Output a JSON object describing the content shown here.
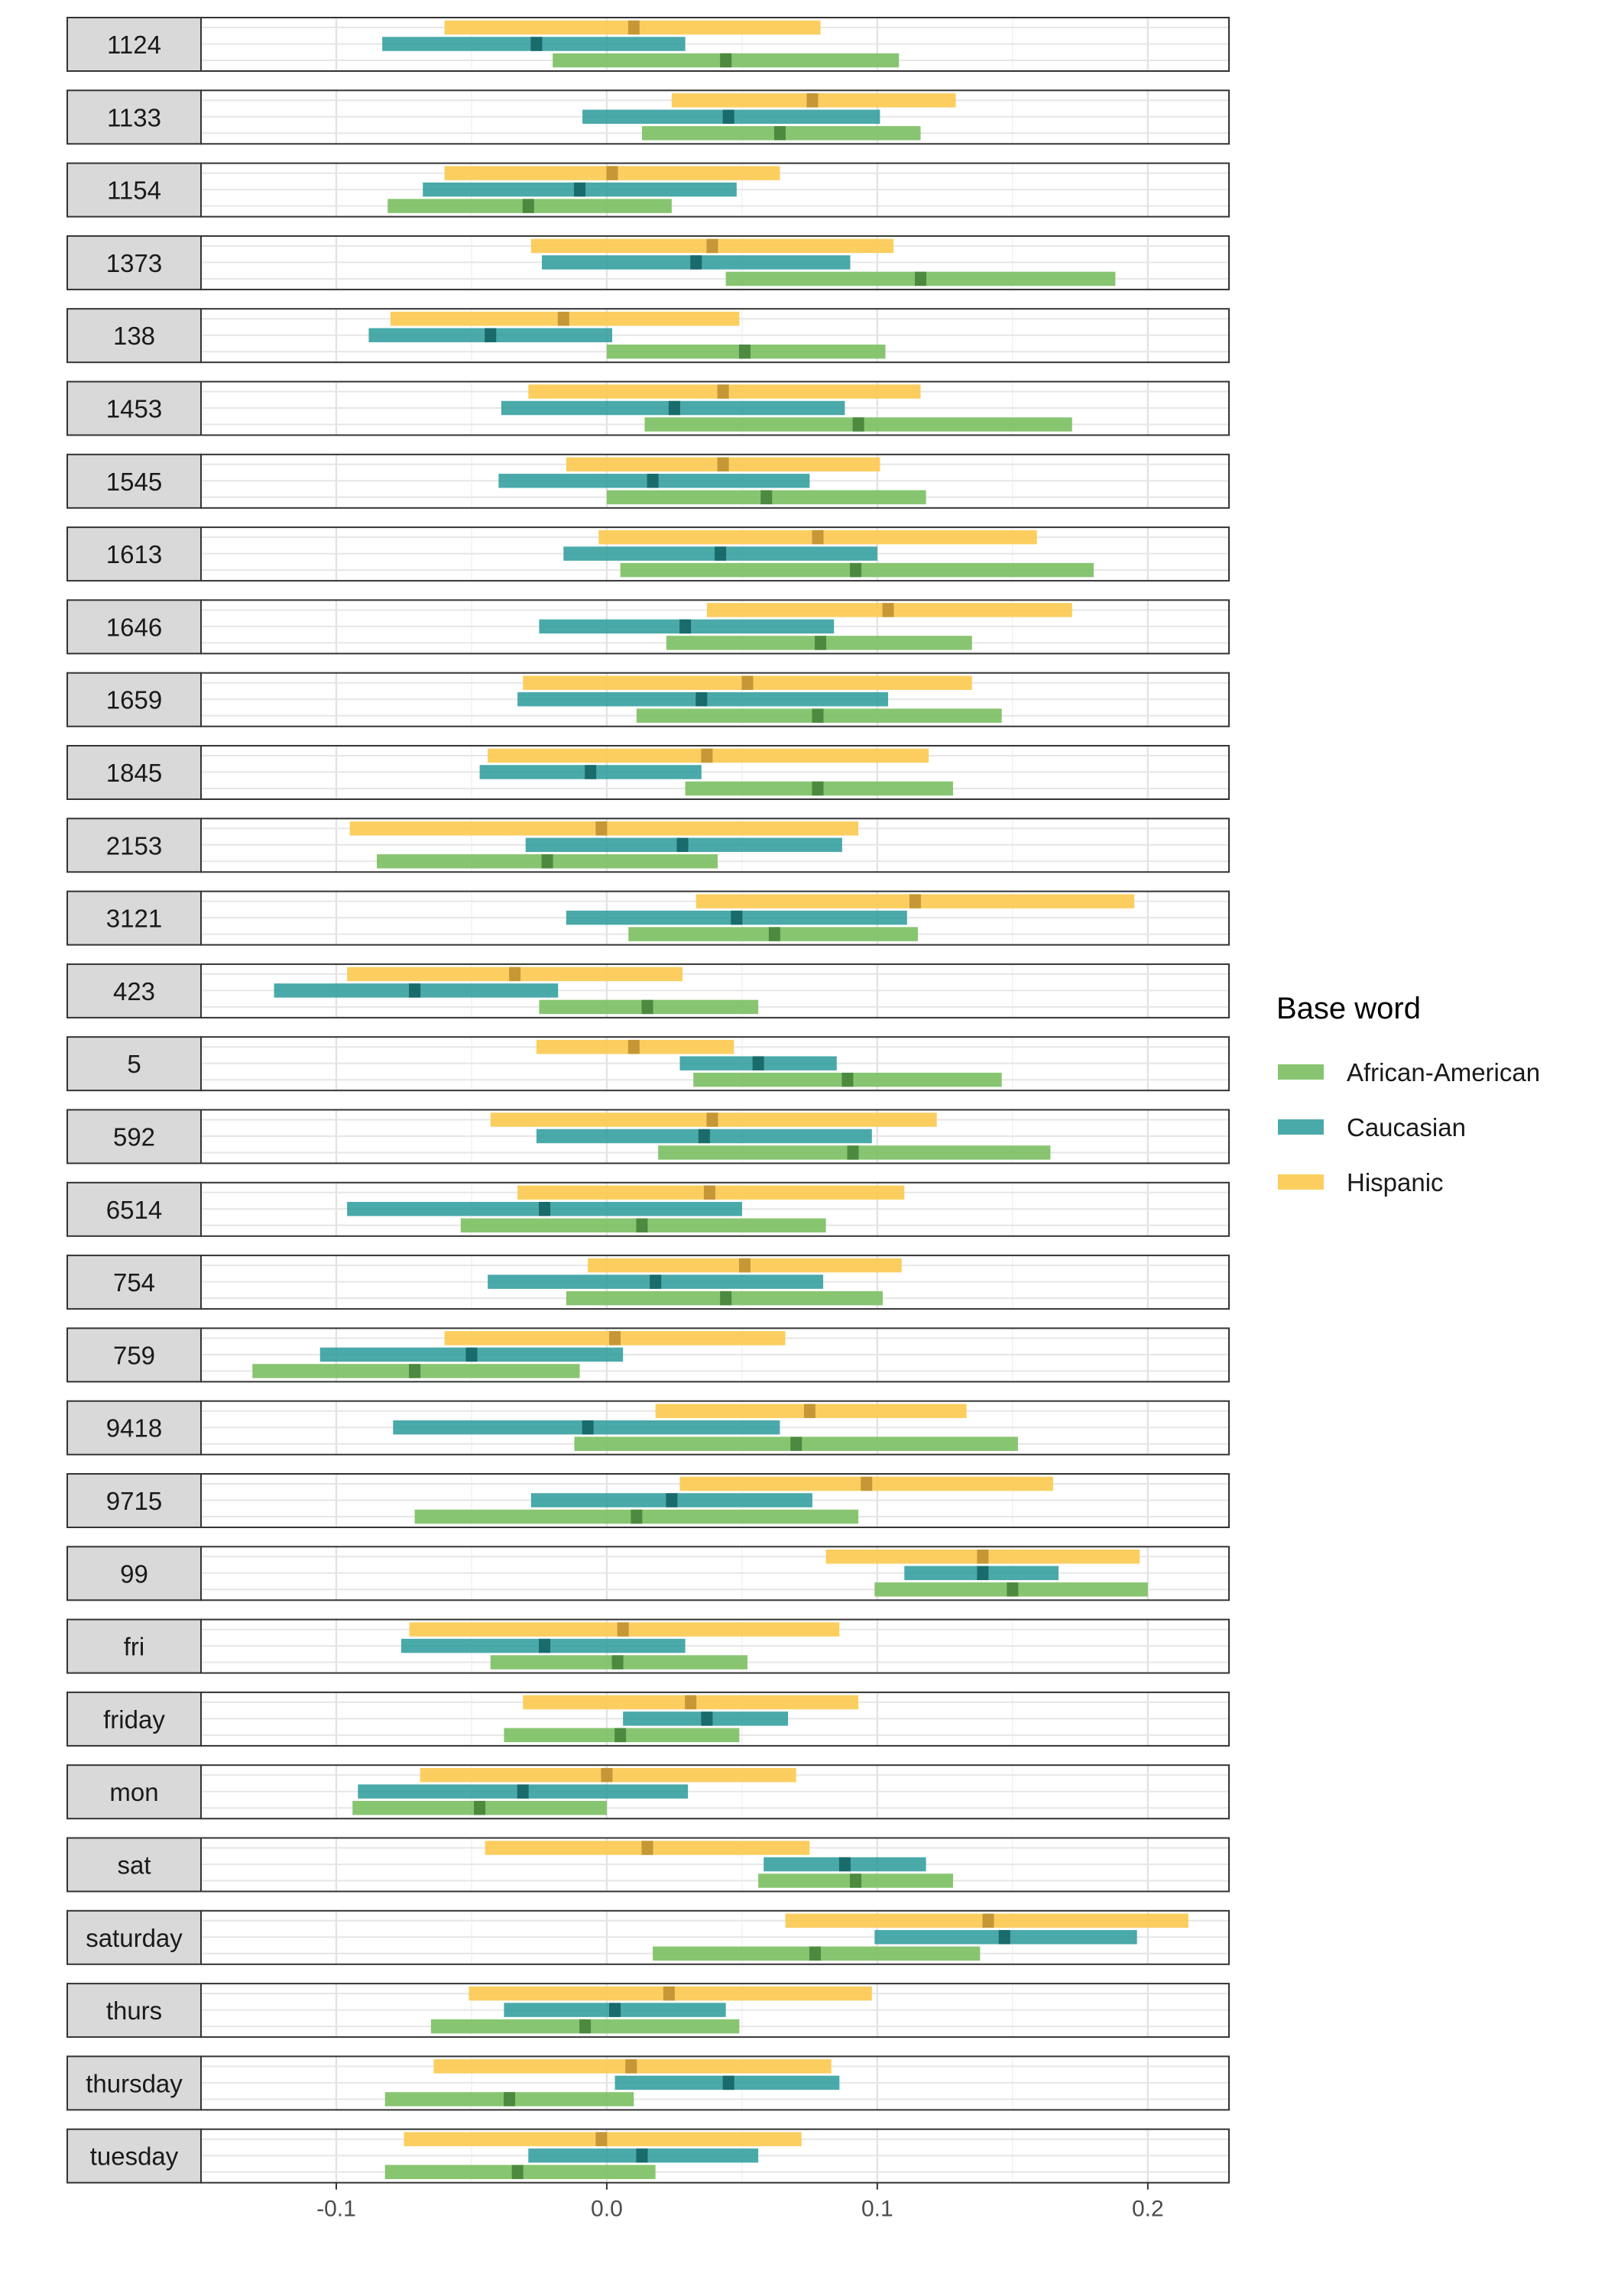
{
  "chart_data": {
    "type": "interval-faceted",
    "xlim": [
      -0.15,
      0.23
    ],
    "x_ticks": [
      -0.1,
      0.0,
      0.1,
      0.2
    ],
    "x_tick_labels": [
      "-0.1",
      "0.0",
      "0.1",
      "0.2"
    ],
    "grid": true,
    "legend": {
      "title": "Base word",
      "placement": "right",
      "entries": [
        {
          "name": "African-American",
          "color": "#7bbf62"
        },
        {
          "name": "Caucasian",
          "color": "#2a9a9a"
        },
        {
          "name": "Hispanic",
          "color": "#fcc94f"
        }
      ]
    },
    "series_order": [
      "Hispanic",
      "Caucasian",
      "African-American"
    ],
    "facets": [
      {
        "label": "1124",
        "Hispanic": [
          -0.06,
          0.01,
          0.079
        ],
        "Caucasian": [
          -0.083,
          -0.026,
          0.029
        ],
        "African-American": [
          -0.02,
          0.044,
          0.108
        ]
      },
      {
        "label": "1133",
        "Hispanic": [
          0.024,
          0.076,
          0.129
        ],
        "Caucasian": [
          -0.009,
          0.045,
          0.101
        ],
        "African-American": [
          0.013,
          0.064,
          0.116
        ]
      },
      {
        "label": "1154",
        "Hispanic": [
          -0.06,
          0.002,
          0.064
        ],
        "Caucasian": [
          -0.068,
          -0.01,
          0.048
        ],
        "African-American": [
          -0.081,
          -0.029,
          0.024
        ]
      },
      {
        "label": "1373",
        "Hispanic": [
          -0.028,
          0.039,
          0.106
        ],
        "Caucasian": [
          -0.024,
          0.033,
          0.09
        ],
        "African-American": [
          0.044,
          0.116,
          0.188
        ]
      },
      {
        "label": "138",
        "Hispanic": [
          -0.08,
          -0.016,
          0.049
        ],
        "Caucasian": [
          -0.088,
          -0.043,
          0.002
        ],
        "African-American": [
          0.0,
          0.051,
          0.103
        ]
      },
      {
        "label": "1453",
        "Hispanic": [
          -0.029,
          0.043,
          0.116
        ],
        "Caucasian": [
          -0.039,
          0.025,
          0.088
        ],
        "African-American": [
          0.014,
          0.093,
          0.172
        ]
      },
      {
        "label": "1545",
        "Hispanic": [
          -0.015,
          0.043,
          0.101
        ],
        "Caucasian": [
          -0.04,
          0.017,
          0.075
        ],
        "African-American": [
          0.0,
          0.059,
          0.118
        ]
      },
      {
        "label": "1613",
        "Hispanic": [
          -0.003,
          0.078,
          0.159
        ],
        "Caucasian": [
          -0.016,
          0.042,
          0.1
        ],
        "African-American": [
          0.005,
          0.092,
          0.18
        ]
      },
      {
        "label": "1646",
        "Hispanic": [
          0.037,
          0.104,
          0.172
        ],
        "Caucasian": [
          -0.025,
          0.029,
          0.084
        ],
        "African-American": [
          0.022,
          0.079,
          0.135
        ]
      },
      {
        "label": "1659",
        "Hispanic": [
          -0.031,
          0.052,
          0.135
        ],
        "Caucasian": [
          -0.033,
          0.035,
          0.104
        ],
        "African-American": [
          0.011,
          0.078,
          0.146
        ]
      },
      {
        "label": "1845",
        "Hispanic": [
          -0.044,
          0.037,
          0.119
        ],
        "Caucasian": [
          -0.047,
          -0.006,
          0.035
        ],
        "African-American": [
          0.029,
          0.078,
          0.128
        ]
      },
      {
        "label": "2153",
        "Hispanic": [
          -0.095,
          -0.002,
          0.093
        ],
        "Caucasian": [
          -0.03,
          0.028,
          0.087
        ],
        "African-American": [
          -0.085,
          -0.022,
          0.041
        ]
      },
      {
        "label": "3121",
        "Hispanic": [
          0.033,
          0.114,
          0.195
        ],
        "Caucasian": [
          -0.015,
          0.048,
          0.111
        ],
        "African-American": [
          0.008,
          0.062,
          0.115
        ]
      },
      {
        "label": "423",
        "Hispanic": [
          -0.096,
          -0.034,
          0.028
        ],
        "Caucasian": [
          -0.123,
          -0.071,
          -0.018
        ],
        "African-American": [
          -0.025,
          0.015,
          0.056
        ]
      },
      {
        "label": "5",
        "Hispanic": [
          -0.026,
          0.01,
          0.047
        ],
        "Caucasian": [
          0.027,
          0.056,
          0.085
        ],
        "African-American": [
          0.032,
          0.089,
          0.146
        ]
      },
      {
        "label": "592",
        "Hispanic": [
          -0.043,
          0.039,
          0.122
        ],
        "Caucasian": [
          -0.026,
          0.036,
          0.098
        ],
        "African-American": [
          0.019,
          0.091,
          0.164
        ]
      },
      {
        "label": "6514",
        "Hispanic": [
          -0.033,
          0.038,
          0.11
        ],
        "Caucasian": [
          -0.096,
          -0.023,
          0.05
        ],
        "African-American": [
          -0.054,
          0.013,
          0.081
        ]
      },
      {
        "label": "754",
        "Hispanic": [
          -0.007,
          0.051,
          0.109
        ],
        "Caucasian": [
          -0.044,
          0.018,
          0.08
        ],
        "African-American": [
          -0.015,
          0.044,
          0.102
        ]
      },
      {
        "label": "759",
        "Hispanic": [
          -0.06,
          0.003,
          0.066
        ],
        "Caucasian": [
          -0.106,
          -0.05,
          0.006
        ],
        "African-American": [
          -0.131,
          -0.071,
          -0.01
        ]
      },
      {
        "label": "9418",
        "Hispanic": [
          0.018,
          0.075,
          0.133
        ],
        "Caucasian": [
          -0.079,
          -0.007,
          0.064
        ],
        "African-American": [
          -0.012,
          0.07,
          0.152
        ]
      },
      {
        "label": "9715",
        "Hispanic": [
          0.027,
          0.096,
          0.165
        ],
        "Caucasian": [
          -0.028,
          0.024,
          0.076
        ],
        "African-American": [
          -0.071,
          0.011,
          0.093
        ]
      },
      {
        "label": "99",
        "Hispanic": [
          0.081,
          0.139,
          0.197
        ],
        "Caucasian": [
          0.11,
          0.139,
          0.167
        ],
        "African-American": [
          0.099,
          0.15,
          0.2
        ]
      },
      {
        "label": "fri",
        "Hispanic": [
          -0.073,
          0.006,
          0.086
        ],
        "Caucasian": [
          -0.076,
          -0.023,
          0.029
        ],
        "African-American": [
          -0.043,
          0.004,
          0.052
        ]
      },
      {
        "label": "friday",
        "Hispanic": [
          -0.031,
          0.031,
          0.093
        ],
        "Caucasian": [
          0.006,
          0.037,
          0.067
        ],
        "African-American": [
          -0.038,
          0.005,
          0.049
        ]
      },
      {
        "label": "mon",
        "Hispanic": [
          -0.069,
          0.0,
          0.07
        ],
        "Caucasian": [
          -0.092,
          -0.031,
          0.03
        ],
        "African-American": [
          -0.094,
          -0.047,
          0.0
        ]
      },
      {
        "label": "sat",
        "Hispanic": [
          -0.045,
          0.015,
          0.075
        ],
        "Caucasian": [
          0.058,
          0.088,
          0.118
        ],
        "African-American": [
          0.056,
          0.092,
          0.128
        ]
      },
      {
        "label": "saturday",
        "Hispanic": [
          0.066,
          0.141,
          0.215
        ],
        "Caucasian": [
          0.099,
          0.147,
          0.196
        ],
        "African-American": [
          0.017,
          0.077,
          0.138
        ]
      },
      {
        "label": "thurs",
        "Hispanic": [
          -0.051,
          0.023,
          0.098
        ],
        "Caucasian": [
          -0.038,
          0.003,
          0.044
        ],
        "African-American": [
          -0.065,
          -0.008,
          0.049
        ]
      },
      {
        "label": "thursday",
        "Hispanic": [
          -0.064,
          0.009,
          0.083
        ],
        "Caucasian": [
          0.003,
          0.045,
          0.086
        ],
        "African-American": [
          -0.082,
          -0.036,
          0.01
        ]
      },
      {
        "label": "tuesday",
        "Hispanic": [
          -0.075,
          -0.002,
          0.072
        ],
        "Caucasian": [
          -0.029,
          0.013,
          0.056
        ],
        "African-American": [
          -0.082,
          -0.033,
          0.018
        ]
      }
    ]
  }
}
